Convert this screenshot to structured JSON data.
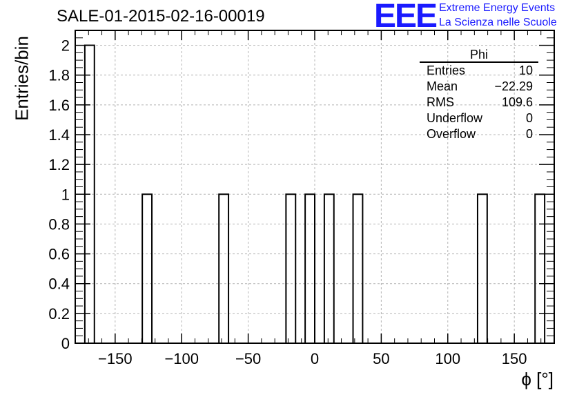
{
  "title": "SALE-01-2015-02-16-00019",
  "logo": {
    "mark": "EEE",
    "line1": "Extreme Energy Events",
    "line2": "La Scienza nelle Scuole"
  },
  "stats": {
    "title": "Phi",
    "rows": [
      {
        "label": "Entries",
        "value": "10"
      },
      {
        "label": "Mean",
        "value": "−22.29"
      },
      {
        "label": "RMS",
        "value": "109.6"
      },
      {
        "label": "Underflow",
        "value": "0"
      },
      {
        "label": "Overflow",
        "value": "0"
      }
    ]
  },
  "colors": {
    "accent": "#1a1aff",
    "grid": "#b4b4b4",
    "bars": "#000000"
  },
  "chart_data": {
    "type": "bar",
    "title": "SALE-01-2015-02-16-00019",
    "xlabel": "ϕ [°]",
    "ylabel": "Entries/bin",
    "xlim": [
      -180,
      180
    ],
    "ylim": [
      0,
      2.1
    ],
    "grid": true,
    "bin_width": 7.2,
    "bins": [
      {
        "x0": -172.8,
        "x1": -165.6,
        "value": 2
      },
      {
        "x0": -129.6,
        "x1": -122.4,
        "value": 1
      },
      {
        "x0": -72.0,
        "x1": -64.8,
        "value": 1
      },
      {
        "x0": -21.6,
        "x1": -14.4,
        "value": 1
      },
      {
        "x0": -7.2,
        "x1": 0.0,
        "value": 1
      },
      {
        "x0": 7.2,
        "x1": 14.4,
        "value": 1
      },
      {
        "x0": 28.8,
        "x1": 36.0,
        "value": 1
      },
      {
        "x0": 122.4,
        "x1": 129.6,
        "value": 1
      },
      {
        "x0": 165.6,
        "x1": 172.8,
        "value": 1
      }
    ],
    "x_ticks": [
      -150,
      -100,
      -50,
      0,
      50,
      100,
      150
    ],
    "x_tick_labels": [
      "−150",
      "−100",
      "−50",
      "0",
      "50",
      "100",
      "150"
    ],
    "y_ticks": [
      0,
      0.2,
      0.4,
      0.6,
      0.8,
      1,
      1.2,
      1.4,
      1.6,
      1.8,
      2
    ],
    "y_tick_labels": [
      "0",
      "0.2",
      "0.4",
      "0.6",
      "0.8",
      "1",
      "1.2",
      "1.4",
      "1.6",
      "1.8",
      "2"
    ]
  }
}
